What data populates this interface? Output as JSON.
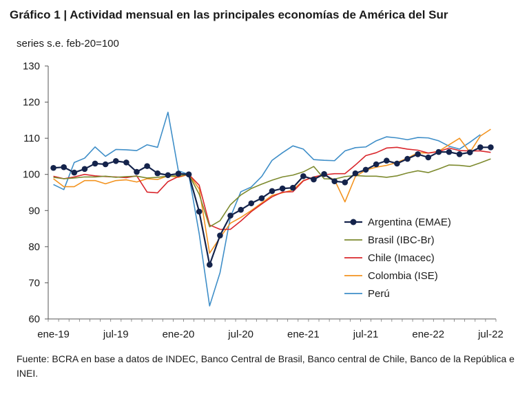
{
  "title": "Gráfico 1 | Actividad mensual en las principales economías de América del Sur",
  "subtitle": "series s.e. feb-20=100",
  "source": "Fuente: BCRA en base a datos de INDEC, Banco Central de Brasil, Banco central de Chile, Banco de la República e INEI.",
  "chart_data": {
    "type": "line",
    "x": [
      "ene-19",
      "feb-19",
      "mar-19",
      "abr-19",
      "may-19",
      "jun-19",
      "jul-19",
      "ago-19",
      "sep-19",
      "oct-19",
      "nov-19",
      "dic-19",
      "ene-20",
      "feb-20",
      "mar-20",
      "abr-20",
      "may-20",
      "jun-20",
      "jul-20",
      "ago-20",
      "sep-20",
      "oct-20",
      "nov-20",
      "dic-20",
      "ene-21",
      "feb-21",
      "mar-21",
      "abr-21",
      "may-21",
      "jun-21",
      "jul-21",
      "ago-21",
      "sep-21",
      "oct-21",
      "nov-21",
      "dic-21",
      "ene-22",
      "feb-22",
      "mar-22",
      "abr-22",
      "may-22",
      "jun-22",
      "jul-22"
    ],
    "x_ticks": [
      "ene-19",
      "jul-19",
      "ene-20",
      "jul-20",
      "ene-21",
      "jul-21",
      "ene-22",
      "jul-22"
    ],
    "ylim": [
      60,
      130
    ],
    "y_ticks": [
      60,
      70,
      80,
      90,
      100,
      110,
      120,
      130
    ],
    "grid": false,
    "legend_position": "center-right",
    "series": [
      {
        "name": "Argentina (EMAE)",
        "color": "#14234b",
        "marker": "circle",
        "values": [
          101.8,
          102.0,
          100.5,
          101.5,
          103.0,
          102.8,
          103.7,
          103.3,
          100.7,
          102.3,
          100.3,
          99.8,
          100.2,
          100.0,
          89.7,
          75.0,
          83.1,
          88.6,
          90.2,
          92.0,
          93.4,
          95.4,
          96.1,
          96.3,
          99.5,
          98.6,
          100.1,
          98.1,
          97.8,
          100.3,
          101.3,
          102.8,
          103.8,
          103.0,
          104.3,
          105.6,
          104.7,
          106.2,
          106.2,
          105.6,
          106.1,
          107.5,
          107.5
        ]
      },
      {
        "name": "Brasil (IBC-Br)",
        "color": "#7d8a2e",
        "marker": "none",
        "values": [
          99.2,
          98.8,
          99.0,
          99.3,
          99.3,
          99.5,
          99.2,
          99.4,
          99.5,
          99.0,
          99.2,
          99.5,
          99.6,
          100.0,
          94.5,
          85.5,
          87.2,
          91.6,
          94.3,
          96.1,
          97.3,
          98.4,
          99.3,
          99.8,
          100.7,
          102.2,
          98.8,
          98.7,
          99.4,
          99.7,
          99.5,
          99.5,
          99.2,
          99.6,
          100.4,
          101.0,
          100.5,
          101.5,
          102.6,
          102.5,
          102.2,
          103.2,
          104.3
        ]
      },
      {
        "name": "Chile (Imacec)",
        "color": "#d9262c",
        "marker": "none",
        "values": [
          99.5,
          98.8,
          99.3,
          100.0,
          99.6,
          99.4,
          99.3,
          99.1,
          99.6,
          95.1,
          94.9,
          98.0,
          99.4,
          100.0,
          97.0,
          86.0,
          84.8,
          84.8,
          87.1,
          89.7,
          91.8,
          93.8,
          95.1,
          95.2,
          98.2,
          99.3,
          99.9,
          100.2,
          100.2,
          102.6,
          105.2,
          106.0,
          107.3,
          107.5,
          107.0,
          106.7,
          105.9,
          106.3,
          107.3,
          106.6,
          106.5,
          106.5,
          106.1
        ]
      },
      {
        "name": "Colombia (ISE)",
        "color": "#f3931f",
        "marker": "none",
        "values": [
          98.8,
          96.6,
          96.6,
          98.3,
          98.3,
          97.4,
          98.3,
          98.5,
          97.9,
          98.8,
          98.6,
          99.6,
          99.2,
          100.0,
          96.0,
          78.2,
          82.5,
          86.5,
          88.1,
          90.0,
          92.1,
          94.2,
          94.9,
          95.7,
          98.3,
          99.2,
          99.8,
          98.5,
          92.4,
          99.4,
          101.2,
          102.0,
          102.5,
          103.3,
          104.5,
          106.0,
          105.9,
          106.4,
          108.2,
          110.0,
          106.1,
          110.6,
          112.5
        ]
      },
      {
        "name": "Perú",
        "color": "#3e8ec8",
        "marker": "none",
        "values": [
          97.2,
          95.8,
          103.3,
          104.5,
          107.6,
          105.0,
          106.9,
          106.8,
          106.6,
          108.2,
          107.5,
          117.2,
          101.0,
          100.0,
          83.6,
          63.6,
          72.8,
          88.2,
          95.2,
          96.5,
          99.4,
          103.9,
          106.0,
          107.9,
          107.0,
          104.1,
          103.9,
          103.8,
          106.5,
          107.4,
          107.6,
          109.3,
          110.4,
          110.1,
          109.6,
          110.2,
          110.1,
          109.3,
          107.8,
          107.0,
          108.9,
          111.0,
          null
        ]
      }
    ]
  }
}
